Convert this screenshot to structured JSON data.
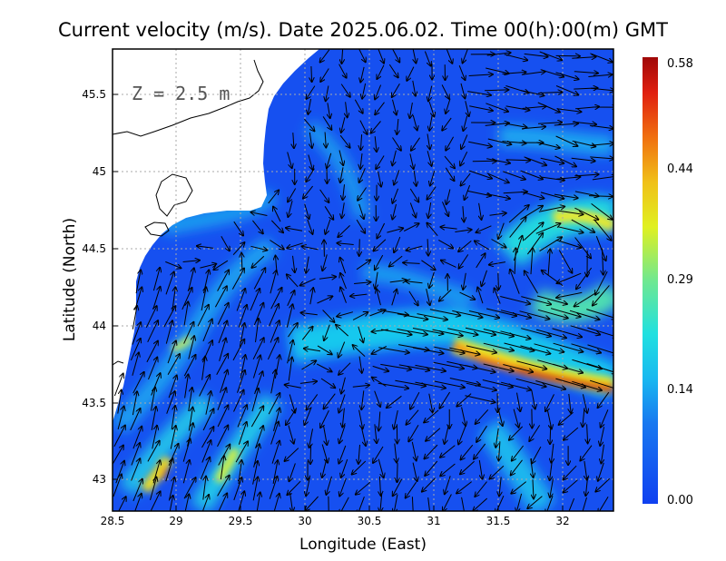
{
  "title": "Current velocity (m/s). Date 2025.06.02. Time 00(h):00(m) GMT",
  "depth_label": "Z = 2.5 m",
  "xlabel": "Longitude (East)",
  "ylabel": "Latitude (North)",
  "x_ticks": [
    "28.5",
    "29",
    "29.5",
    "30",
    "30.5",
    "31",
    "31.5",
    "32"
  ],
  "y_ticks": [
    "43",
    "43.5",
    "44",
    "44.5",
    "45",
    "45.5"
  ],
  "colorbar_ticks": [
    "0.58",
    "0.44",
    "0.29",
    "0.14",
    "0.00"
  ],
  "colors": {
    "ocean_low": "#1650f0",
    "ocean_mid": "#1aa0f0",
    "cyan": "#18e0e8",
    "yellow": "#f0f020",
    "orange": "#f07818",
    "red": "#d01010",
    "land": "#ffffff",
    "grid": "#aaaaaa"
  },
  "chart_data": {
    "type": "heatmap",
    "title": "Current velocity (m/s). Date 2025.06.02. Time 00(h):00(m) GMT",
    "xlabel": "Longitude (East)",
    "ylabel": "Latitude (North)",
    "xlim": [
      28.5,
      32.4
    ],
    "ylim": [
      42.8,
      45.8
    ],
    "colorbar": {
      "min": 0.0,
      "max": 0.58,
      "ticks": [
        0.0,
        0.14,
        0.29,
        0.44,
        0.58
      ]
    },
    "grid": true,
    "legend": "colorbar right"
  }
}
